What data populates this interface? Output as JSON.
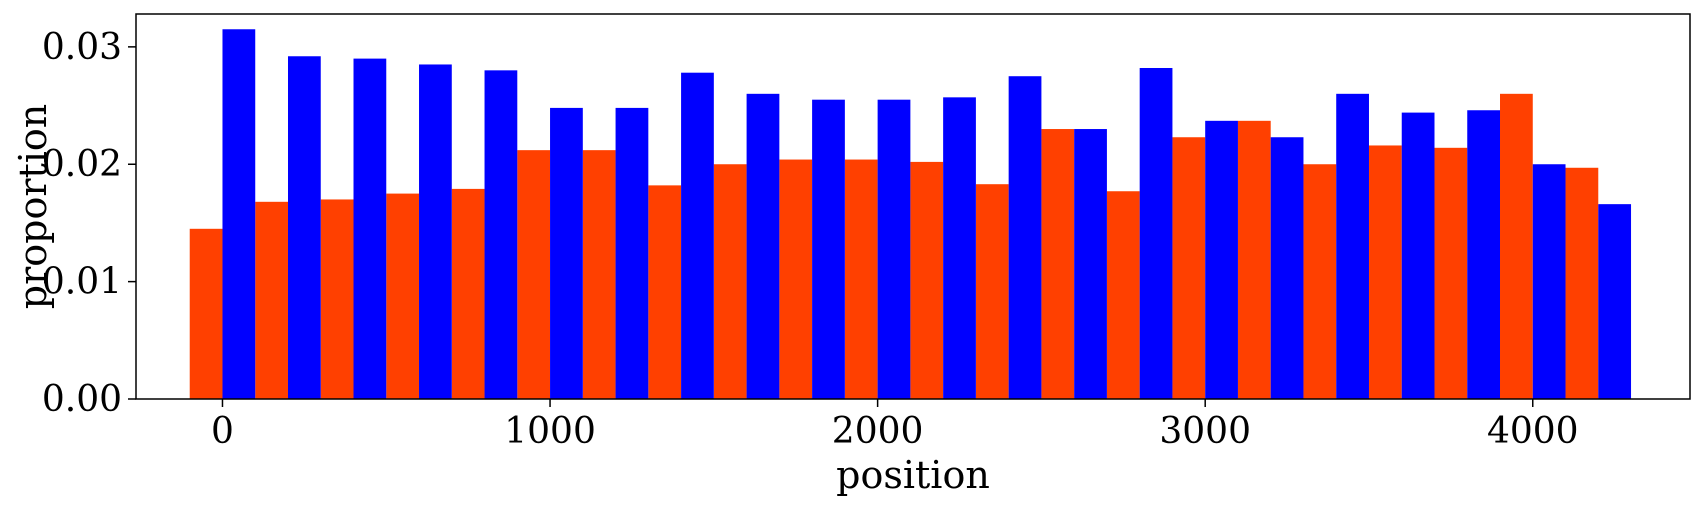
{
  "chart_data": {
    "type": "bar",
    "xlabel": "position",
    "ylabel": "proportion",
    "xlim": [
      -264,
      4480
    ],
    "ylim": [
      0,
      0.0328
    ],
    "xticks": [
      0,
      1000,
      2000,
      3000,
      4000
    ],
    "xtick_labels": [
      "0",
      "1000",
      "2000",
      "3000",
      "4000"
    ],
    "yticks": [
      0,
      0.01,
      0.02,
      0.03
    ],
    "ytick_labels": [
      "0.00",
      "0.01",
      "0.02",
      "0.03"
    ],
    "grid": false,
    "bin_width": 200,
    "x": [
      0,
      200,
      400,
      600,
      800,
      1000,
      1200,
      1400,
      1600,
      1800,
      2000,
      2200,
      2400,
      2600,
      2800,
      3000,
      3200,
      3400,
      3600,
      3800,
      4000,
      4200
    ],
    "series": [
      {
        "color": "#ff4000",
        "values": [
          0.0145,
          0.0168,
          0.017,
          0.0175,
          0.0179,
          0.0212,
          0.0212,
          0.0182,
          0.02,
          0.0204,
          0.0204,
          0.0202,
          0.0183,
          0.023,
          0.0177,
          0.0223,
          0.0237,
          0.02,
          0.0216,
          0.0214,
          0.026,
          0.0197
        ]
      },
      {
        "color": "#0000ff",
        "values": [
          0.0315,
          0.0292,
          0.029,
          0.0285,
          0.028,
          0.0248,
          0.0248,
          0.0278,
          0.026,
          0.0255,
          0.0255,
          0.0257,
          0.0275,
          0.023,
          0.0282,
          0.0237,
          0.0223,
          0.026,
          0.0244,
          0.0246,
          0.02,
          0.0166
        ]
      }
    ]
  }
}
